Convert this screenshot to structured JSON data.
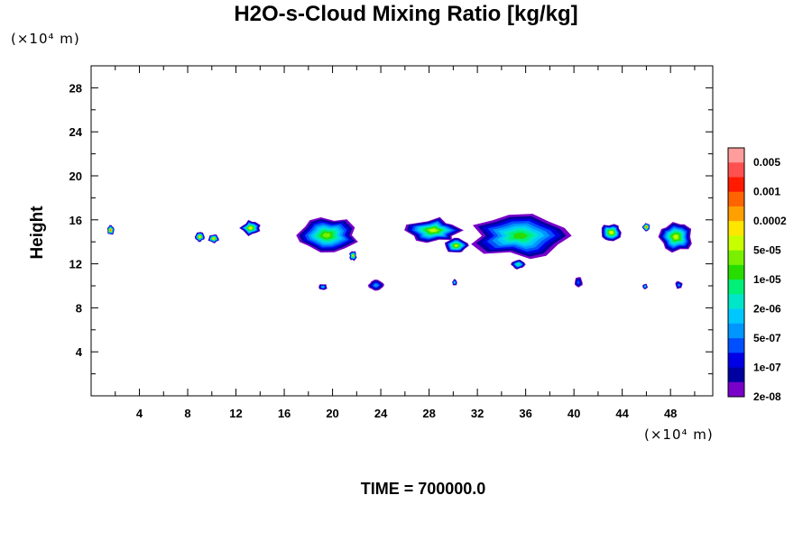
{
  "chart_data": {
    "type": "heatmap",
    "title": "H2O-s-Cloud Mixing Ratio [kg/kg]",
    "ylabel": "Height",
    "xlabel": "",
    "x_unit": "(×10⁴ m)",
    "y_unit": "(×10⁴ m)",
    "xlim": [
      0,
      51.5
    ],
    "ylim": [
      0,
      30
    ],
    "x_ticks": [
      4,
      8,
      12,
      16,
      20,
      24,
      28,
      32,
      36,
      40,
      44,
      48
    ],
    "y_ticks": [
      4,
      8,
      12,
      16,
      20,
      24,
      28
    ],
    "colorbar": {
      "labels": [
        "0.005",
        "0.001",
        "0.0002",
        "5e-05",
        "1e-05",
        "2e-06",
        "5e-07",
        "1e-07",
        "2e-08"
      ],
      "colors": [
        "#ff9c9c",
        "#ff5050",
        "#ff1a00",
        "#ff6400",
        "#ffa000",
        "#ffe600",
        "#c8ff00",
        "#78f000",
        "#28dc00",
        "#00f078",
        "#00e6c8",
        "#00c8ff",
        "#0096ff",
        "#0050ff",
        "#0000e6",
        "#0000a0",
        "#7800c8"
      ]
    },
    "regions": [
      {
        "x": [
          1.3,
          1.9
        ],
        "y": [
          14.6,
          15.5
        ],
        "max_level": 14
      },
      {
        "x": [
          8.6,
          9.4
        ],
        "y": [
          14.0,
          14.9
        ],
        "max_level": 12
      },
      {
        "x": [
          9.7,
          10.6
        ],
        "y": [
          13.9,
          14.7
        ],
        "max_level": 12
      },
      {
        "x": [
          12.4,
          14.0
        ],
        "y": [
          14.6,
          15.9
        ],
        "max_level": 11
      },
      {
        "x": [
          17.0,
          22.0
        ],
        "y": [
          13.0,
          16.2
        ],
        "max_level": 9
      },
      {
        "x": [
          21.4,
          22.0
        ],
        "y": [
          12.3,
          13.2
        ],
        "max_level": 11
      },
      {
        "x": [
          26.2,
          30.5
        ],
        "y": [
          14.0,
          16.1
        ],
        "max_level": 10
      },
      {
        "x": [
          29.3,
          31.2
        ],
        "y": [
          13.0,
          14.3
        ],
        "max_level": 10
      },
      {
        "x": [
          31.5,
          39.6
        ],
        "y": [
          12.6,
          16.5
        ],
        "max_level": 8
      },
      {
        "x": [
          34.8,
          36.0
        ],
        "y": [
          11.5,
          12.4
        ],
        "max_level": 7
      },
      {
        "x": [
          42.2,
          44.0
        ],
        "y": [
          14.0,
          15.7
        ],
        "max_level": 11
      },
      {
        "x": [
          45.7,
          46.3
        ],
        "y": [
          15.0,
          15.7
        ],
        "max_level": 14
      },
      {
        "x": [
          47.0,
          49.9
        ],
        "y": [
          13.0,
          15.9
        ],
        "max_level": 10
      },
      {
        "x": [
          18.8,
          19.6
        ],
        "y": [
          9.6,
          10.2
        ],
        "max_level": 5
      },
      {
        "x": [
          23.0,
          24.2
        ],
        "y": [
          9.6,
          10.5
        ],
        "max_level": 4
      },
      {
        "x": [
          29.9,
          30.3
        ],
        "y": [
          10.0,
          10.6
        ],
        "max_level": 6
      },
      {
        "x": [
          40.0,
          40.7
        ],
        "y": [
          9.8,
          10.8
        ],
        "max_level": 3
      },
      {
        "x": [
          45.7,
          46.1
        ],
        "y": [
          9.7,
          10.2
        ],
        "max_level": 6
      },
      {
        "x": [
          48.4,
          49.0
        ],
        "y": [
          9.7,
          10.4
        ],
        "max_level": 4
      }
    ]
  },
  "footer": {
    "time_label": "TIME = 700000.0"
  }
}
